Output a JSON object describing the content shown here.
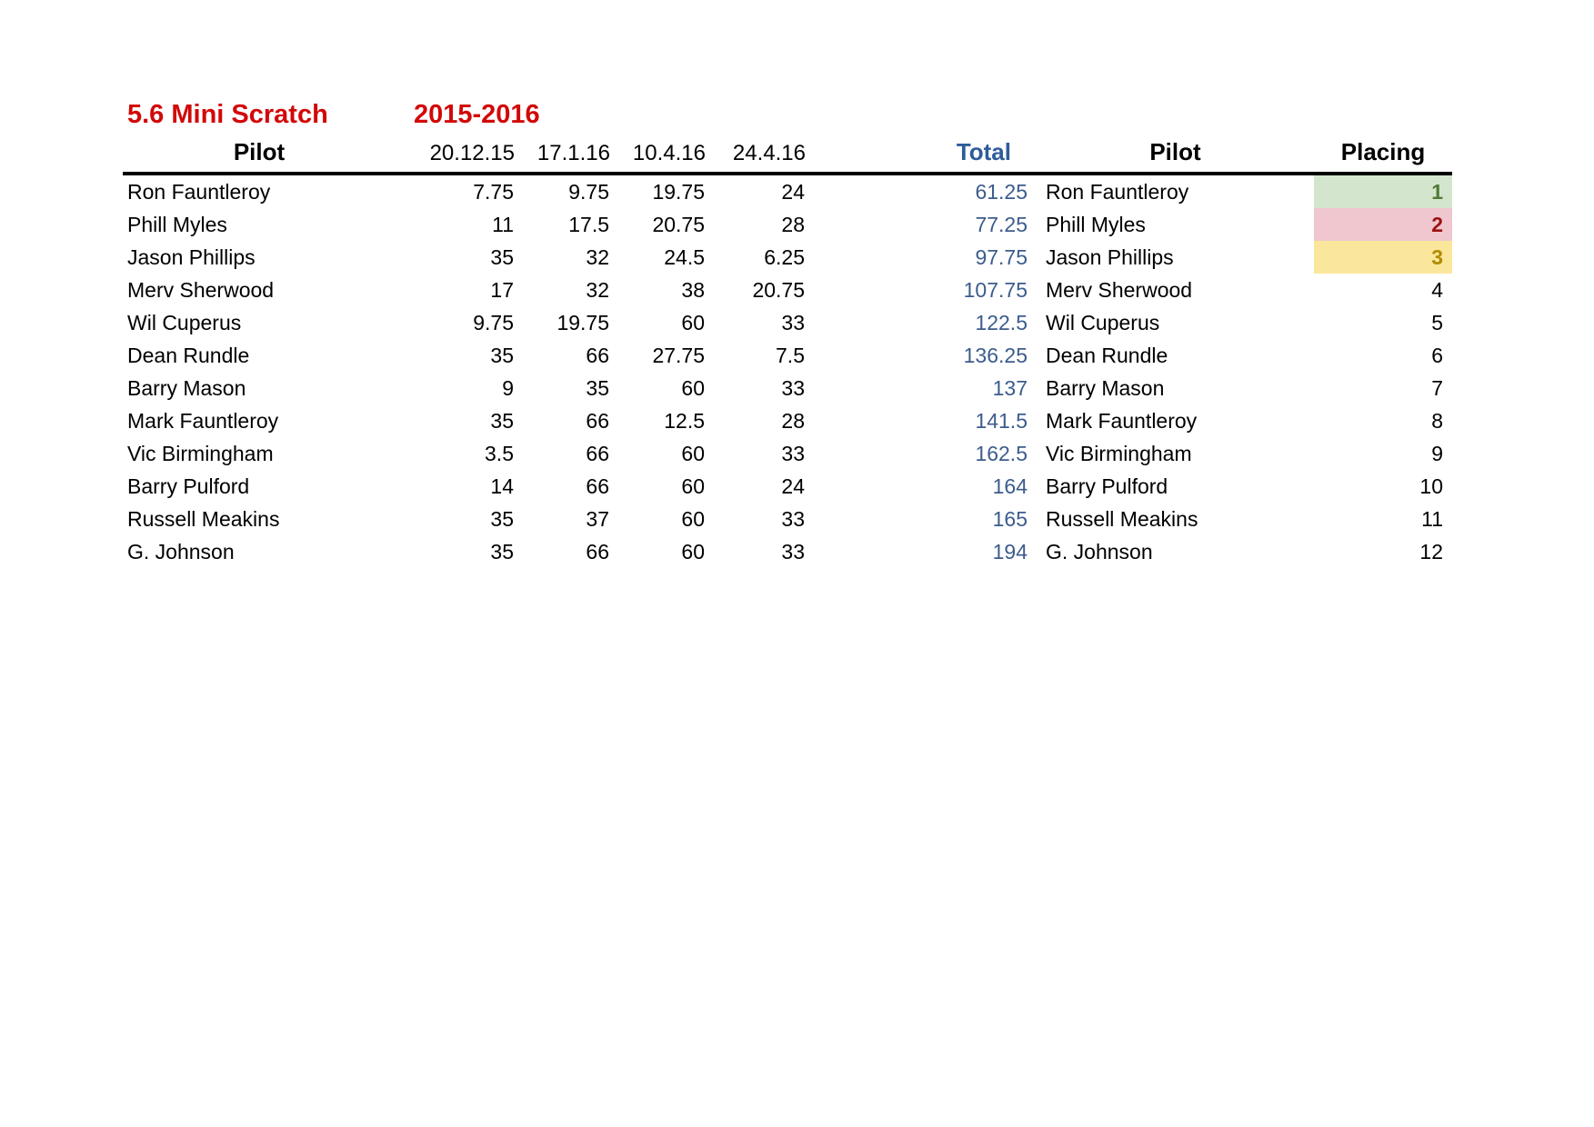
{
  "title": "5.6 Mini Scratch",
  "season": "2015-2016",
  "accent_colors": {
    "title_red": "#d20808",
    "total_blue_header": "#2e5c9a",
    "total_blue_values": "#3c5c8c"
  },
  "headers": {
    "pilot": "Pilot",
    "dates": [
      "20.12.15",
      "17.1.16",
      "10.4.16",
      "24.4.16"
    ],
    "total": "Total",
    "pilot2": "Pilot",
    "placing": "Placing"
  },
  "placing_styles": {
    "1": {
      "bg": "#d3e6cd",
      "fg": "#4f7b35"
    },
    "2": {
      "bg": "#f0c7ce",
      "fg": "#9c1212"
    },
    "3": {
      "bg": "#fae79b",
      "fg": "#b08a00"
    }
  },
  "rows": [
    {
      "pilot": "Ron Fauntleroy",
      "scores": [
        7.75,
        9.75,
        19.75,
        24
      ],
      "total": 61.25,
      "placing": 1
    },
    {
      "pilot": "Phill Myles",
      "scores": [
        11,
        17.5,
        20.75,
        28
      ],
      "total": 77.25,
      "placing": 2
    },
    {
      "pilot": "Jason Phillips",
      "scores": [
        35,
        32,
        24.5,
        6.25
      ],
      "total": 97.75,
      "placing": 3
    },
    {
      "pilot": "Merv Sherwood",
      "scores": [
        17,
        32,
        38,
        20.75
      ],
      "total": 107.75,
      "placing": 4
    },
    {
      "pilot": "Wil Cuperus",
      "scores": [
        9.75,
        19.75,
        60,
        33
      ],
      "total": 122.5,
      "placing": 5
    },
    {
      "pilot": "Dean Rundle",
      "scores": [
        35,
        66,
        27.75,
        7.5
      ],
      "total": 136.25,
      "placing": 6
    },
    {
      "pilot": "Barry Mason",
      "scores": [
        9,
        35,
        60,
        33
      ],
      "total": 137,
      "placing": 7
    },
    {
      "pilot": "Mark Fauntleroy",
      "scores": [
        35,
        66,
        12.5,
        28
      ],
      "total": 141.5,
      "placing": 8
    },
    {
      "pilot": "Vic Birmingham",
      "scores": [
        3.5,
        66,
        60,
        33
      ],
      "total": 162.5,
      "placing": 9
    },
    {
      "pilot": "Barry Pulford",
      "scores": [
        14,
        66,
        60,
        24
      ],
      "total": 164,
      "placing": 10
    },
    {
      "pilot": "Russell Meakins",
      "scores": [
        35,
        37,
        60,
        33
      ],
      "total": 165,
      "placing": 11
    },
    {
      "pilot": "G. Johnson",
      "scores": [
        35,
        66,
        60,
        33
      ],
      "total": 194,
      "placing": 12
    }
  ]
}
